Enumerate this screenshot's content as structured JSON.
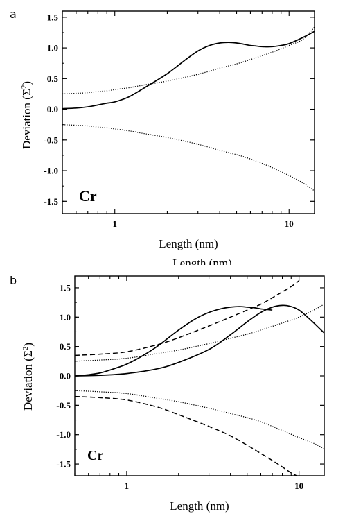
{
  "chart_data": [
    {
      "panel": "a",
      "type": "line",
      "xscale": "log",
      "xlim": [
        0.5,
        14
      ],
      "ylim": [
        -1.7,
        1.6
      ],
      "xlabel": "Length (nm)",
      "ylabel": "Deviation (Σ2)",
      "ylabel_main": "Deviation (Σ",
      "ylabel_sup": "2",
      "ylabel_close": ")",
      "element_label": "Cr",
      "xticks": [
        1,
        10
      ],
      "xtick_labels": [
        "1",
        "10"
      ],
      "yticks": [
        1.5,
        1.0,
        0.5,
        0.0,
        -0.5,
        -1.0,
        -1.5
      ],
      "ytick_labels": [
        "1.5",
        "1.0",
        "0.5",
        "0.0",
        "-0.5",
        "-1.0",
        "-1.5"
      ],
      "grid": false,
      "series": [
        {
          "style": "solid",
          "x": [
            0.5,
            0.6,
            0.7,
            0.8,
            0.9,
            1.0,
            1.2,
            1.5,
            2.0,
            2.5,
            3.0,
            3.5,
            4.0,
            4.5,
            5.0,
            5.5,
            6.0,
            6.5,
            7.0,
            8.0,
            9.0,
            10.0,
            12.0,
            14.0
          ],
          "y": [
            0.01,
            0.02,
            0.04,
            0.07,
            0.1,
            0.12,
            0.2,
            0.36,
            0.58,
            0.79,
            0.95,
            1.04,
            1.08,
            1.09,
            1.08,
            1.06,
            1.04,
            1.03,
            1.02,
            1.02,
            1.04,
            1.07,
            1.17,
            1.27
          ]
        },
        {
          "style": "dotted",
          "x": [
            0.5,
            0.6,
            0.7,
            0.8,
            0.9,
            1.0,
            1.2,
            1.5,
            2.0,
            3.0,
            4.0,
            5.0,
            6.0,
            8.0,
            10.0,
            12.0,
            14.0
          ],
          "y": [
            0.25,
            0.26,
            0.27,
            0.29,
            0.3,
            0.32,
            0.35,
            0.4,
            0.46,
            0.57,
            0.67,
            0.74,
            0.81,
            0.93,
            1.04,
            1.14,
            1.34
          ]
        },
        {
          "style": "dotted",
          "x": [
            0.5,
            0.6,
            0.7,
            0.8,
            0.9,
            1.0,
            1.2,
            1.5,
            2.0,
            3.0,
            4.0,
            5.0,
            6.0,
            8.0,
            10.0,
            12.0,
            14.0
          ],
          "y": [
            -0.25,
            -0.26,
            -0.27,
            -0.29,
            -0.3,
            -0.32,
            -0.35,
            -0.4,
            -0.46,
            -0.57,
            -0.67,
            -0.74,
            -0.81,
            -0.95,
            -1.08,
            -1.2,
            -1.33
          ]
        }
      ]
    },
    {
      "panel": "b",
      "type": "line",
      "xscale": "log",
      "xlim": [
        0.5,
        14
      ],
      "ylim": [
        -1.7,
        1.7
      ],
      "xlabel": "Length (nm)",
      "ylabel": "Deviation (Σ2)",
      "ylabel_main": "Deviation (Σ",
      "ylabel_sup": "2",
      "ylabel_close": ")",
      "element_label": "Cr",
      "xticks": [
        1,
        10
      ],
      "xtick_labels": [
        "1",
        "10"
      ],
      "yticks": [
        1.5,
        1.0,
        0.5,
        0.0,
        -0.5,
        -1.0,
        -1.5
      ],
      "ytick_labels": [
        "1.5",
        "1.0",
        "0.5",
        "0.0",
        "-0.5",
        "-1.0",
        "-1.5"
      ],
      "grid": false,
      "series": [
        {
          "style": "solid",
          "x": [
            0.5,
            0.6,
            0.7,
            0.8,
            0.9,
            1.0,
            1.2,
            1.5,
            2.0,
            2.5,
            3.0,
            3.5,
            4.0,
            4.5,
            5.0,
            5.5,
            6.0,
            7.0
          ],
          "y": [
            0.0,
            0.02,
            0.05,
            0.1,
            0.15,
            0.2,
            0.32,
            0.5,
            0.78,
            0.97,
            1.08,
            1.14,
            1.17,
            1.18,
            1.17,
            1.16,
            1.14,
            1.12
          ]
        },
        {
          "style": "solid",
          "x": [
            0.5,
            0.7,
            1.0,
            1.5,
            2.0,
            3.0,
            4.0,
            5.0,
            6.0,
            7.0,
            8.0,
            9.0,
            10.0,
            11.0,
            12.0,
            14.0
          ],
          "y": [
            0.0,
            0.01,
            0.04,
            0.12,
            0.23,
            0.45,
            0.7,
            0.92,
            1.08,
            1.17,
            1.2,
            1.18,
            1.12,
            1.02,
            0.92,
            0.73
          ]
        },
        {
          "style": "dotted",
          "x": [
            0.5,
            0.7,
            1.0,
            1.5,
            2.0,
            3.0,
            4.0,
            5.0,
            6.0,
            8.0,
            10.0,
            12.0,
            14.0
          ],
          "y": [
            0.25,
            0.27,
            0.3,
            0.38,
            0.44,
            0.55,
            0.64,
            0.71,
            0.78,
            0.9,
            1.0,
            1.11,
            1.22
          ]
        },
        {
          "style": "dotted",
          "x": [
            0.5,
            0.7,
            1.0,
            1.5,
            2.0,
            3.0,
            4.0,
            5.0,
            6.0,
            8.0,
            10.0,
            12.0,
            14.0
          ],
          "y": [
            -0.25,
            -0.27,
            -0.3,
            -0.38,
            -0.44,
            -0.55,
            -0.64,
            -0.71,
            -0.78,
            -0.93,
            -1.05,
            -1.14,
            -1.24
          ]
        },
        {
          "style": "dashed",
          "x": [
            0.5,
            0.7,
            1.0,
            1.5,
            2.0,
            3.0,
            4.0,
            5.0,
            6.0,
            7.0,
            8.0,
            9.0,
            10.0
          ],
          "y": [
            0.35,
            0.37,
            0.41,
            0.53,
            0.65,
            0.85,
            1.0,
            1.12,
            1.22,
            1.33,
            1.43,
            1.52,
            1.62
          ]
        },
        {
          "style": "dashed",
          "x": [
            0.5,
            0.7,
            1.0,
            1.5,
            2.0,
            3.0,
            4.0,
            5.0,
            6.0,
            7.0,
            8.0,
            9.0,
            10.0
          ],
          "y": [
            -0.35,
            -0.37,
            -0.41,
            -0.53,
            -0.66,
            -0.86,
            -1.02,
            -1.18,
            -1.32,
            -1.44,
            -1.55,
            -1.65,
            -1.72
          ]
        }
      ]
    }
  ],
  "overlap_text": "Length (nm)"
}
